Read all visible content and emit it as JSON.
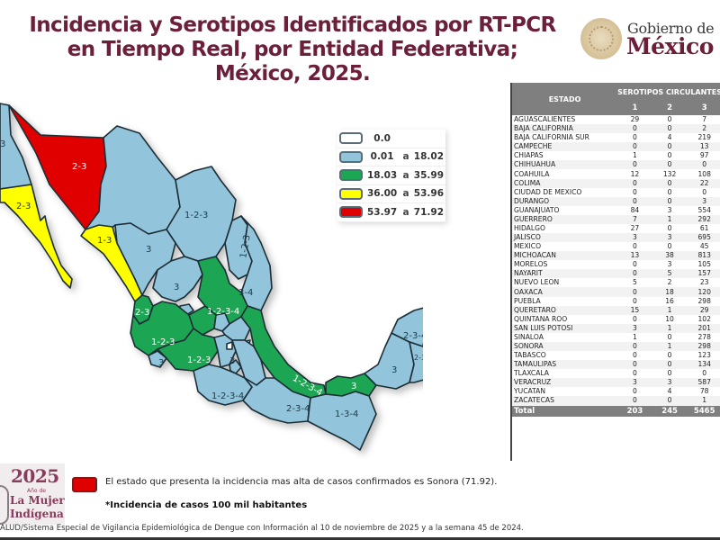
{
  "header": {
    "title": "Incidencia y Serotipos Identificados por RT-PCR en Tiempo Real, por Entidad Federativa; México, 2025.",
    "logo_line1": "Gobierno de",
    "logo_line2": "México"
  },
  "legend": {
    "rows": [
      {
        "color": "#ffffff",
        "min": "0.0",
        "sep": "",
        "max": ""
      },
      {
        "color": "#92c5dc",
        "min": "0.01",
        "sep": "a",
        "max": "18.02"
      },
      {
        "color": "#1aa652",
        "min": "18.03",
        "sep": "a",
        "max": "35.99"
      },
      {
        "color": "#ffff00",
        "min": "36.00",
        "sep": "a",
        "max": "53.96"
      },
      {
        "color": "#e00000",
        "min": "53.97",
        "sep": "a",
        "max": "71.92"
      }
    ]
  },
  "map": {
    "colors": {
      "light_blue": "#92c5dc",
      "green": "#1aa652",
      "yellow": "#ffff00",
      "red": "#e00000",
      "white": "#ffffff",
      "border": "#1f2d36"
    },
    "labels": {
      "sonora": "2-3",
      "baja_california_sur": "2-3",
      "sinaloa": "1-3",
      "chihuahua": "1-2-3",
      "coahuila": "1-2-3",
      "nuevo_leon": "1-2-3",
      "durango": "3",
      "zacatecas": "3",
      "tamaulipas": "3-4",
      "nayarit": "2-3",
      "jalisco": "1-2-3",
      "michoacan": "1-2-3",
      "colima": "3",
      "guanajuato": "1-2-3",
      "san_luis_potosi": "1-2-3-4",
      "queretaro": "1-2-3",
      "hidalgo": "1-3-4",
      "aguascalientes": "1-2-3",
      "mexico": "3",
      "morelos": "2-3",
      "puebla": "2-3-4",
      "guerrero": "1-2-3-4",
      "oaxaca": "2-3-4",
      "veracruz": "1-2-3-4",
      "tabasco": "3",
      "chiapas": "1-3-4",
      "campeche": "3",
      "yucatan": "2-3-4",
      "quintana_roo": "2-3-4",
      "baja_california": "3"
    }
  },
  "table": {
    "header_estado": "ESTADO",
    "header_group": "SEROTIPOS CIRCULANTES",
    "columns": [
      "1",
      "2",
      "3"
    ],
    "rows": [
      {
        "estado": "AGUASCALIENTES",
        "s1": "29",
        "s2": "0",
        "s3": "7"
      },
      {
        "estado": "BAJA CALIFORNIA",
        "s1": "0",
        "s2": "0",
        "s3": "2"
      },
      {
        "estado": "BAJA CALIFORNIA SUR",
        "s1": "0",
        "s2": "4",
        "s3": "219"
      },
      {
        "estado": "CAMPECHE",
        "s1": "0",
        "s2": "0",
        "s3": "13"
      },
      {
        "estado": "CHIAPAS",
        "s1": "1",
        "s2": "0",
        "s3": "97"
      },
      {
        "estado": "CHIHUAHUA",
        "s1": "0",
        "s2": "0",
        "s3": "0"
      },
      {
        "estado": "COAHUILA",
        "s1": "12",
        "s2": "132",
        "s3": "108"
      },
      {
        "estado": "COLIMA",
        "s1": "0",
        "s2": "0",
        "s3": "22"
      },
      {
        "estado": "CIUDAD DE MEXICO",
        "s1": "0",
        "s2": "0",
        "s3": "0"
      },
      {
        "estado": "DURANGO",
        "s1": "0",
        "s2": "0",
        "s3": "3"
      },
      {
        "estado": "GUANAJUATO",
        "s1": "84",
        "s2": "3",
        "s3": "554"
      },
      {
        "estado": "GUERRERO",
        "s1": "7",
        "s2": "1",
        "s3": "292"
      },
      {
        "estado": "HIDALGO",
        "s1": "27",
        "s2": "0",
        "s3": "61"
      },
      {
        "estado": "JALISCO",
        "s1": "3",
        "s2": "3",
        "s3": "695"
      },
      {
        "estado": "MEXICO",
        "s1": "0",
        "s2": "0",
        "s3": "45"
      },
      {
        "estado": "MICHOACAN",
        "s1": "13",
        "s2": "38",
        "s3": "813"
      },
      {
        "estado": "MORELOS",
        "s1": "0",
        "s2": "3",
        "s3": "105"
      },
      {
        "estado": "NAYARIT",
        "s1": "0",
        "s2": "5",
        "s3": "157"
      },
      {
        "estado": "NUEVO LEON",
        "s1": "5",
        "s2": "2",
        "s3": "23"
      },
      {
        "estado": "OAXACA",
        "s1": "0",
        "s2": "18",
        "s3": "120"
      },
      {
        "estado": "PUEBLA",
        "s1": "0",
        "s2": "16",
        "s3": "298"
      },
      {
        "estado": "QUERETARO",
        "s1": "15",
        "s2": "1",
        "s3": "29"
      },
      {
        "estado": "QUINTANA ROO",
        "s1": "0",
        "s2": "10",
        "s3": "102"
      },
      {
        "estado": "SAN LUIS POTOSI",
        "s1": "3",
        "s2": "1",
        "s3": "201"
      },
      {
        "estado": "SINALOA",
        "s1": "1",
        "s2": "0",
        "s3": "278"
      },
      {
        "estado": "SONORA",
        "s1": "0",
        "s2": "1",
        "s3": "298"
      },
      {
        "estado": "TABASCO",
        "s1": "0",
        "s2": "0",
        "s3": "123"
      },
      {
        "estado": "TAMAULIPAS",
        "s1": "0",
        "s2": "0",
        "s3": "134"
      },
      {
        "estado": "TLAXCALA",
        "s1": "0",
        "s2": "0",
        "s3": "0"
      },
      {
        "estado": "VERACRUZ",
        "s1": "3",
        "s2": "3",
        "s3": "587"
      },
      {
        "estado": "YUCATAN",
        "s1": "0",
        "s2": "4",
        "s3": "78"
      },
      {
        "estado": "ZACATECAS",
        "s1": "0",
        "s2": "0",
        "s3": "1"
      }
    ],
    "total": {
      "label": "Total",
      "s1": "203",
      "s2": "245",
      "s3": "5465"
    }
  },
  "footer": {
    "logo_year": "2025",
    "logo_sub": "Año de",
    "logo_line1": "La Mujer",
    "logo_line2": "Indígena",
    "note_highest": "El estado que presenta la incidencia mas alta de casos confirmados es Sonora (71.92).",
    "note_incidence": "*Incidencia de casos 100 mil habitantes",
    "source": "ALUD/Sistema Especial de Vigilancia Epidemiológica de Dengue con Información al 10 de noviembre de 2025 y a la semana 45 de 2024."
  }
}
